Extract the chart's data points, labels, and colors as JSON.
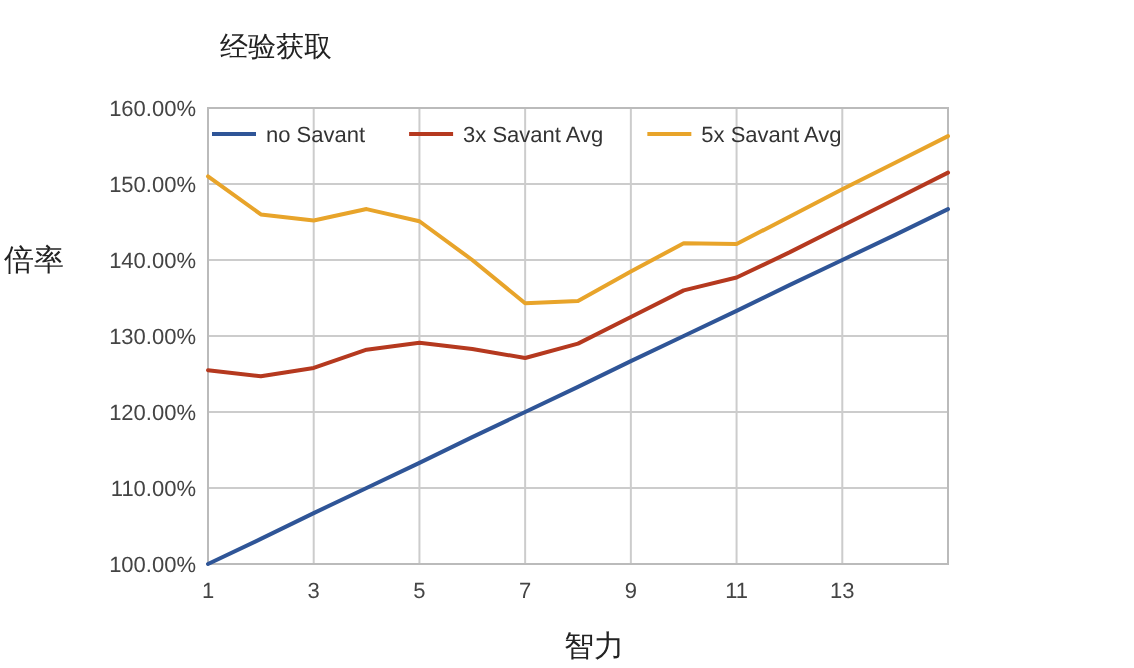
{
  "chart_data": {
    "type": "line",
    "title": "经验获取",
    "xlabel": "智力",
    "ylabel": "倍率",
    "x": [
      1,
      2,
      3,
      4,
      5,
      6,
      7,
      8,
      9,
      10,
      11,
      12,
      13,
      14,
      15
    ],
    "series": [
      {
        "name": "no Savant",
        "color": "#2f5597",
        "values": [
          100,
          103.3,
          106.7,
          110,
          113.3,
          116.7,
          120,
          123.3,
          126.7,
          130,
          133.3,
          136.7,
          140,
          143.3,
          146.7
        ]
      },
      {
        "name": "3x Savant Avg",
        "color": "#b5391f",
        "values": [
          125.5,
          124.7,
          125.8,
          128.2,
          129.1,
          128.3,
          127.1,
          129,
          132.5,
          136,
          137.7,
          141,
          144.5,
          148,
          151.5
        ]
      },
      {
        "name": "5x Savant Avg",
        "color": "#e8a42a",
        "values": [
          151,
          146,
          145.2,
          146.7,
          145.1,
          140,
          134.3,
          134.6,
          138.5,
          142.2,
          142.1,
          145.7,
          149.3,
          152.8,
          156.3
        ]
      }
    ],
    "xlim": [
      1,
      15
    ],
    "xticks": [
      1,
      3,
      5,
      7,
      9,
      11,
      13
    ],
    "ylim": [
      100,
      160
    ],
    "yticks": [
      {
        "value": 100,
        "label": "100.00%"
      },
      {
        "value": 110,
        "label": "110.00%"
      },
      {
        "value": 120,
        "label": "120.00%"
      },
      {
        "value": 130,
        "label": "130.00%"
      },
      {
        "value": 140,
        "label": "140.00%"
      },
      {
        "value": 150,
        "label": "150.00%"
      },
      {
        "value": 160,
        "label": "160.00%"
      }
    ],
    "grid": true,
    "legend": "top",
    "marker": "none",
    "line_style": "solid"
  }
}
